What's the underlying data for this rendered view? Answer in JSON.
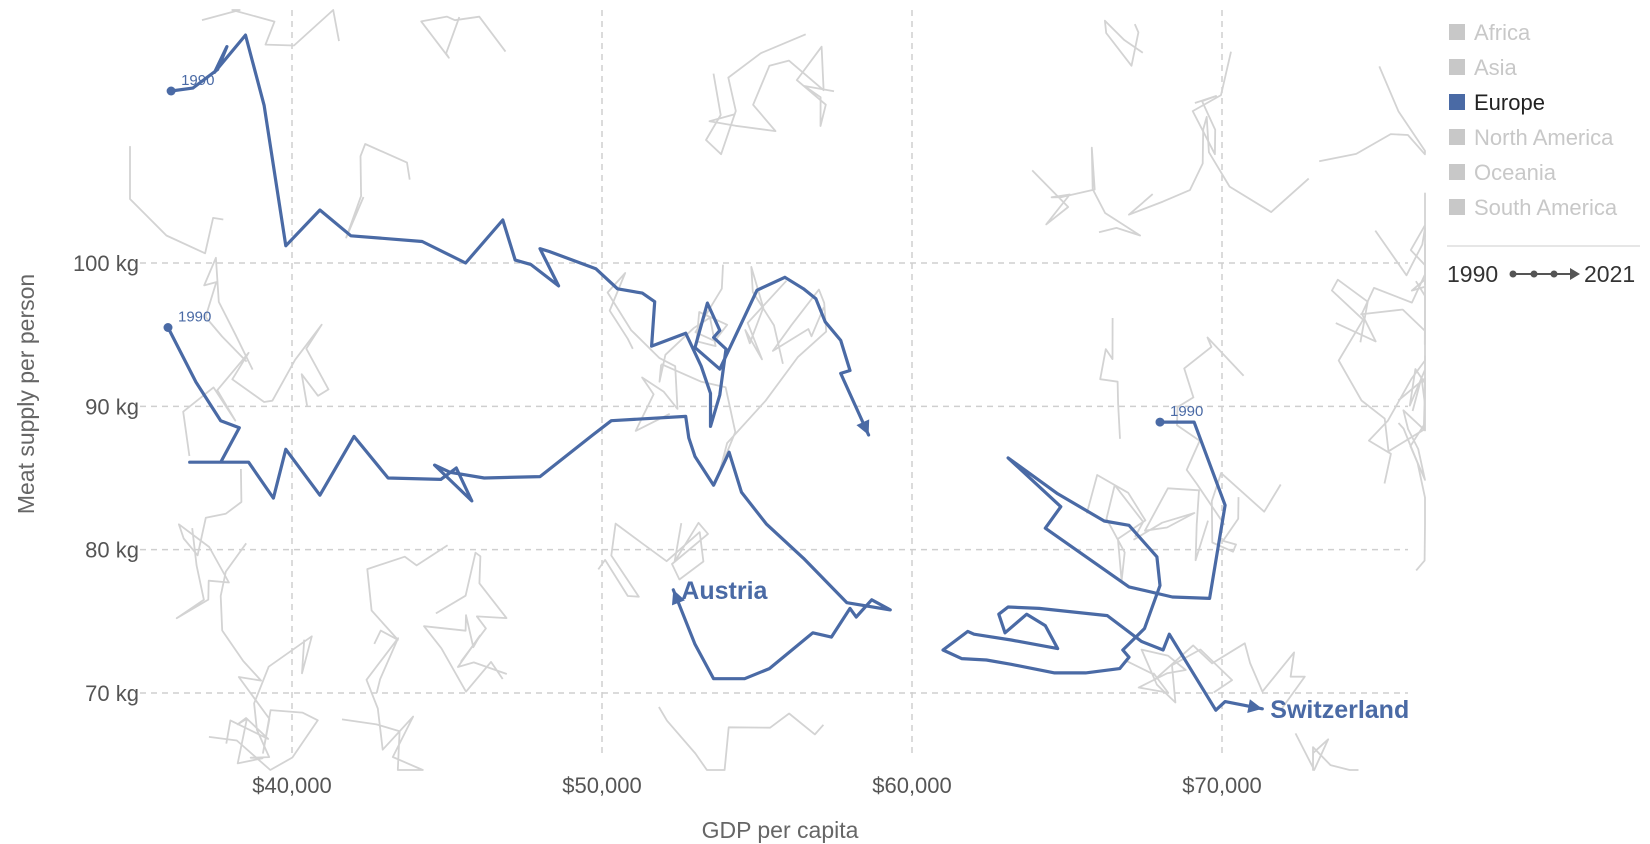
{
  "chart_data": {
    "type": "line",
    "subtype": "connected-scatter",
    "xlabel": "GDP per capita",
    "ylabel": "Meat supply per person",
    "xlim": [
      35500,
      75500
    ],
    "ylim": [
      65,
      117
    ],
    "x_ticks": [
      {
        "value": 40000,
        "label": "$40,000"
      },
      {
        "value": 50000,
        "label": "$50,000"
      },
      {
        "value": 60000,
        "label": "$60,000"
      },
      {
        "value": 70000,
        "label": "$70,000"
      }
    ],
    "y_ticks": [
      {
        "value": 70,
        "label": "70 kg"
      },
      {
        "value": 80,
        "label": "80 kg"
      },
      {
        "value": 90,
        "label": "90 kg"
      },
      {
        "value": 100,
        "label": "100 kg"
      }
    ],
    "grid": true,
    "colors": {
      "highlight": "#4a6aa5",
      "background": "#d3d3d3",
      "grid": "#cfcfcf",
      "legend_inactive": "#c8c8c8",
      "legend_active": "#4a6aa5"
    },
    "legend": {
      "position": "top-right",
      "entries": [
        {
          "label": "Africa",
          "active": false
        },
        {
          "label": "Asia",
          "active": false
        },
        {
          "label": "Europe",
          "active": true
        },
        {
          "label": "North America",
          "active": false
        },
        {
          "label": "Oceania",
          "active": false
        },
        {
          "label": "South America",
          "active": false
        }
      ],
      "time_start": "1990",
      "time_end": "2021"
    },
    "series": [
      {
        "name": "Austria",
        "start_label": "1990",
        "points": [
          [
            36000,
            95.5
          ],
          [
            36900,
            91.7
          ],
          [
            37700,
            89.0
          ],
          [
            38300,
            88.5
          ],
          [
            37700,
            86.1
          ],
          [
            36700,
            86.1
          ],
          [
            37700,
            86.1
          ],
          [
            38600,
            86.1
          ],
          [
            39400,
            83.6
          ],
          [
            39800,
            87.0
          ],
          [
            40900,
            83.8
          ],
          [
            42000,
            87.9
          ],
          [
            43100,
            85.0
          ],
          [
            44800,
            84.9
          ],
          [
            45300,
            85.7
          ],
          [
            45800,
            83.4
          ],
          [
            44600,
            85.9
          ],
          [
            45100,
            85.4
          ],
          [
            46200,
            85.0
          ],
          [
            48000,
            85.1
          ],
          [
            49700,
            88.0
          ],
          [
            50300,
            89.0
          ],
          [
            52700,
            89.3
          ],
          [
            52800,
            87.8
          ],
          [
            53000,
            86.5
          ],
          [
            53600,
            84.5
          ],
          [
            54100,
            86.8
          ],
          [
            54500,
            84.0
          ],
          [
            55300,
            81.8
          ],
          [
            56500,
            79.4
          ],
          [
            57900,
            76.3
          ],
          [
            59300,
            75.8
          ],
          [
            58700,
            76.5
          ],
          [
            58200,
            75.3
          ],
          [
            58000,
            75.9
          ],
          [
            57400,
            73.9
          ],
          [
            56800,
            74.2
          ],
          [
            55400,
            71.7
          ],
          [
            54600,
            71.0
          ],
          [
            53600,
            71.0
          ],
          [
            53000,
            73.4
          ],
          [
            52300,
            77.2
          ]
        ]
      },
      {
        "name": "Switzerland",
        "start_label": "1990",
        "points": [
          [
            68000,
            88.9
          ],
          [
            69100,
            88.9
          ],
          [
            70100,
            83.1
          ],
          [
            69600,
            76.6
          ],
          [
            68400,
            76.7
          ],
          [
            67000,
            77.4
          ],
          [
            64300,
            81.5
          ],
          [
            64800,
            83.0
          ],
          [
            63100,
            86.4
          ],
          [
            64700,
            83.9
          ],
          [
            66200,
            82.0
          ],
          [
            67000,
            81.7
          ],
          [
            67900,
            79.5
          ],
          [
            68000,
            77.5
          ],
          [
            67500,
            74.5
          ],
          [
            66800,
            73.0
          ],
          [
            67000,
            72.5
          ],
          [
            66700,
            71.7
          ],
          [
            65600,
            71.4
          ],
          [
            64600,
            71.4
          ],
          [
            63200,
            72.0
          ],
          [
            62400,
            72.3
          ],
          [
            61600,
            72.4
          ],
          [
            61000,
            73.0
          ],
          [
            61800,
            74.3
          ],
          [
            62000,
            74.1
          ],
          [
            63200,
            73.7
          ],
          [
            64700,
            73.1
          ],
          [
            64300,
            74.7
          ],
          [
            63700,
            75.5
          ],
          [
            63000,
            74.2
          ],
          [
            62800,
            75.5
          ],
          [
            63100,
            76.0
          ],
          [
            64100,
            75.9
          ],
          [
            66300,
            75.4
          ],
          [
            67400,
            73.6
          ],
          [
            68100,
            73.0
          ],
          [
            68300,
            74.1
          ],
          [
            69800,
            68.8
          ],
          [
            70100,
            69.4
          ],
          [
            71300,
            68.9
          ]
        ]
      },
      {
        "name": "",
        "start_label": "1990",
        "points": [
          [
            36100,
            112.0
          ],
          [
            36800,
            112.2
          ],
          [
            37600,
            113.5
          ],
          [
            37900,
            115.1
          ],
          [
            37500,
            113.3
          ],
          [
            38500,
            115.9
          ],
          [
            39100,
            111.0
          ],
          [
            39800,
            101.2
          ],
          [
            40900,
            103.7
          ],
          [
            41900,
            101.9
          ],
          [
            44200,
            101.5
          ],
          [
            45600,
            100.0
          ],
          [
            46800,
            103.0
          ],
          [
            47200,
            100.2
          ],
          [
            47700,
            99.9
          ],
          [
            48600,
            98.4
          ],
          [
            48000,
            101.0
          ],
          [
            48300,
            100.8
          ],
          [
            49800,
            99.6
          ],
          [
            50500,
            98.2
          ],
          [
            51300,
            97.9
          ],
          [
            51700,
            97.3
          ],
          [
            51600,
            94.2
          ],
          [
            52700,
            95.1
          ],
          [
            53200,
            92.8
          ],
          [
            53500,
            90.9
          ],
          [
            53500,
            88.6
          ],
          [
            53800,
            90.8
          ],
          [
            54000,
            94.0
          ],
          [
            53600,
            94.8
          ],
          [
            53800,
            95.3
          ],
          [
            53400,
            97.2
          ],
          [
            53000,
            94.1
          ],
          [
            53800,
            92.6
          ],
          [
            55000,
            98.1
          ],
          [
            55900,
            99.0
          ],
          [
            56500,
            98.2
          ],
          [
            56900,
            97.5
          ],
          [
            57200,
            95.9
          ],
          [
            57700,
            94.6
          ],
          [
            58000,
            92.5
          ],
          [
            57700,
            92.3
          ],
          [
            58600,
            88.0
          ]
        ]
      }
    ],
    "background_series_count": 40
  }
}
